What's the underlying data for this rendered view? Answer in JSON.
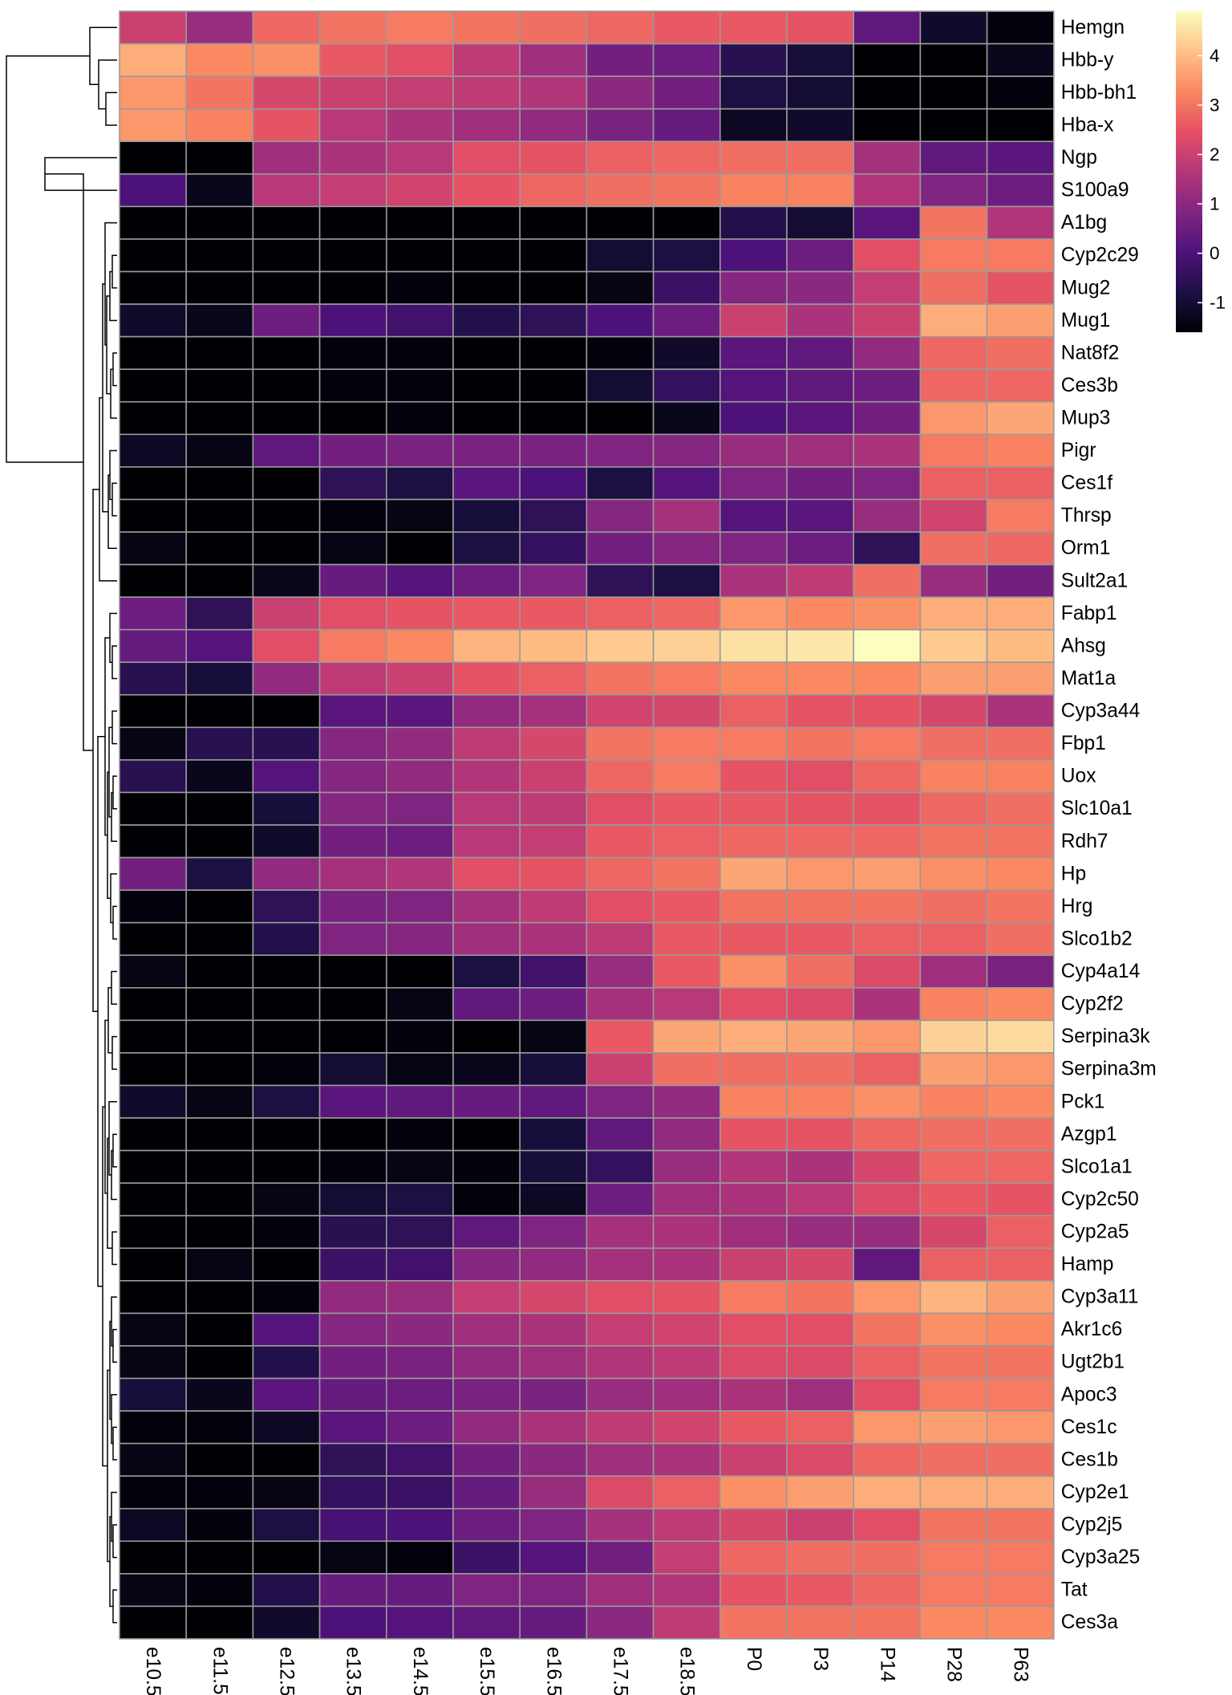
{
  "chart_data": {
    "type": "heatmap",
    "title": "",
    "xlabel": "",
    "ylabel": "",
    "colormap": "magma",
    "color_range": [
      -1.6,
      4.9
    ],
    "colors": {
      "magma_stops": [
        "#000004",
        "#1c1044",
        "#4f127b",
        "#812581",
        "#b5367a",
        "#e55064",
        "#fb8761",
        "#fec287",
        "#fcfdbf"
      ],
      "cell_border": "#9a9a9a",
      "dendrogram": "#000000"
    },
    "columns": [
      "e10.5",
      "e11.5",
      "e12.5",
      "e13.5",
      "e14.5",
      "e15.5",
      "e16.5",
      "e17.5",
      "e18.5",
      "P0",
      "P3",
      "P14",
      "P28",
      "P63"
    ],
    "rows": [
      "Hemgn",
      "Hbb-y",
      "Hbb-bh1",
      "Hba-x",
      "Ngp",
      "S100a9",
      "A1bg",
      "Cyp2c29",
      "Mug2",
      "Mug1",
      "Nat8f2",
      "Ces3b",
      "Mup3",
      "Pigr",
      "Ces1f",
      "Thrsp",
      "Orm1",
      "Sult2a1",
      "Fabp1",
      "Ahsg",
      "Mat1a",
      "Cyp3a44",
      "Fbp1",
      "Uox",
      "Slc10a1",
      "Rdh7",
      "Hp",
      "Hrg",
      "Slco1b2",
      "Cyp4a14",
      "Cyp2f2",
      "Serpina3k",
      "Serpina3m",
      "Pck1",
      "Azgp1",
      "Slco1a1",
      "Cyp2c50",
      "Cyp2a5",
      "Hamp",
      "Cyp3a11",
      "Akr1c6",
      "Ugt2b1",
      "Apoc3",
      "Ces1c",
      "Ces1b",
      "Cyp2e1",
      "Cyp2j5",
      "Cyp3a25",
      "Tat",
      "Ces3a"
    ],
    "values": [
      [
        2.0,
        1.2,
        2.8,
        3.0,
        3.1,
        3.0,
        2.9,
        2.8,
        2.6,
        2.6,
        2.5,
        0.3,
        -1.1,
        -1.5
      ],
      [
        3.8,
        3.3,
        3.4,
        2.6,
        2.4,
        1.8,
        1.3,
        0.6,
        0.5,
        -0.6,
        -0.9,
        -1.6,
        -1.6,
        -1.3
      ],
      [
        3.5,
        3.0,
        2.2,
        2.0,
        1.9,
        1.8,
        1.6,
        1.0,
        0.6,
        -0.8,
        -1.0,
        -1.6,
        -1.6,
        -1.5
      ],
      [
        3.5,
        3.2,
        2.5,
        1.7,
        1.5,
        1.3,
        1.1,
        0.7,
        0.4,
        -1.2,
        -1.1,
        -1.6,
        -1.6,
        -1.6
      ],
      [
        -1.6,
        -1.6,
        1.3,
        1.5,
        1.7,
        2.4,
        2.5,
        2.7,
        2.8,
        2.9,
        2.9,
        1.4,
        0.3,
        0.2
      ],
      [
        0.0,
        -1.3,
        1.7,
        1.9,
        2.1,
        2.5,
        2.8,
        2.9,
        3.0,
        3.2,
        3.2,
        1.6,
        0.8,
        0.5
      ],
      [
        -1.6,
        -1.6,
        -1.6,
        -1.6,
        -1.6,
        -1.6,
        -1.6,
        -1.6,
        -1.6,
        -0.7,
        -1.0,
        0.2,
        3.0,
        1.6
      ],
      [
        -1.6,
        -1.6,
        -1.6,
        -1.6,
        -1.6,
        -1.6,
        -1.6,
        -1.0,
        -0.8,
        0.0,
        0.5,
        2.4,
        3.1,
        3.1
      ],
      [
        -1.6,
        -1.6,
        -1.6,
        -1.6,
        -1.5,
        -1.6,
        -1.6,
        -1.4,
        -0.3,
        0.9,
        1.0,
        1.9,
        2.9,
        2.5
      ],
      [
        -1.1,
        -1.3,
        0.5,
        0.0,
        -0.2,
        -0.7,
        -0.5,
        0.0,
        0.5,
        2.0,
        1.5,
        2.0,
        3.8,
        3.6
      ],
      [
        -1.6,
        -1.6,
        -1.6,
        -1.5,
        -1.5,
        -1.6,
        -1.6,
        -1.5,
        -1.1,
        0.2,
        0.3,
        1.1,
        2.8,
        2.9
      ],
      [
        -1.6,
        -1.6,
        -1.6,
        -1.5,
        -1.5,
        -1.6,
        -1.6,
        -1.0,
        -0.4,
        0.1,
        0.3,
        0.5,
        2.8,
        2.8
      ],
      [
        -1.6,
        -1.6,
        -1.6,
        -1.6,
        -1.5,
        -1.6,
        -1.6,
        -1.6,
        -1.3,
        0.0,
        0.2,
        0.6,
        3.5,
        3.7
      ],
      [
        -1.2,
        -1.4,
        0.3,
        0.6,
        0.7,
        0.7,
        0.7,
        0.8,
        0.9,
        1.2,
        1.3,
        1.5,
        3.1,
        3.2
      ],
      [
        -1.6,
        -1.6,
        -1.6,
        -0.5,
        -0.8,
        0.2,
        0.0,
        -0.8,
        0.1,
        0.8,
        0.6,
        0.8,
        2.7,
        2.7
      ],
      [
        -1.6,
        -1.6,
        -1.6,
        -1.5,
        -1.4,
        -0.9,
        -0.5,
        0.9,
        1.4,
        0.1,
        0.2,
        1.2,
        2.1,
        3.1
      ],
      [
        -1.4,
        -1.6,
        -1.6,
        -1.4,
        -1.6,
        -0.8,
        -0.4,
        0.6,
        0.9,
        0.8,
        0.5,
        -0.5,
        2.9,
        2.8
      ],
      [
        -1.6,
        -1.6,
        -1.3,
        0.4,
        0.1,
        0.5,
        0.8,
        -0.5,
        -0.8,
        1.5,
        1.8,
        2.9,
        1.2,
        0.6
      ],
      [
        0.5,
        -0.5,
        2.0,
        2.4,
        2.5,
        2.6,
        2.6,
        2.7,
        2.8,
        3.5,
        3.3,
        3.4,
        3.8,
        3.8
      ],
      [
        0.4,
        0.1,
        2.4,
        3.1,
        3.3,
        3.9,
        4.0,
        4.2,
        4.3,
        4.5,
        4.6,
        4.9,
        4.2,
        4.0
      ],
      [
        -0.6,
        -0.9,
        1.1,
        1.8,
        2.0,
        2.5,
        2.7,
        3.0,
        3.1,
        3.3,
        3.3,
        3.3,
        3.6,
        3.6
      ],
      [
        -1.6,
        -1.6,
        -1.6,
        0.2,
        0.2,
        1.1,
        1.4,
        2.1,
        2.2,
        2.7,
        2.5,
        2.5,
        2.2,
        1.5
      ],
      [
        -1.4,
        -0.6,
        -0.6,
        0.9,
        1.1,
        1.8,
        2.2,
        3.0,
        3.1,
        3.1,
        3.0,
        3.1,
        2.9,
        2.9
      ],
      [
        -0.6,
        -1.3,
        0.1,
        0.9,
        1.1,
        1.6,
        2.0,
        2.8,
        3.1,
        2.5,
        2.4,
        2.8,
        3.2,
        3.2
      ],
      [
        -1.6,
        -1.6,
        -0.9,
        0.9,
        0.8,
        1.7,
        1.8,
        2.4,
        2.6,
        2.6,
        2.5,
        2.5,
        2.8,
        2.9
      ],
      [
        -1.6,
        -1.6,
        -1.1,
        0.6,
        0.5,
        1.7,
        1.9,
        2.6,
        2.7,
        2.8,
        2.8,
        2.8,
        3.0,
        3.0
      ],
      [
        0.6,
        -0.8,
        1.1,
        1.4,
        1.6,
        2.4,
        2.5,
        2.8,
        3.0,
        3.7,
        3.5,
        3.6,
        3.4,
        3.3
      ],
      [
        -1.5,
        -1.6,
        -0.5,
        0.7,
        0.8,
        1.4,
        1.8,
        2.4,
        2.6,
        3.0,
        3.0,
        3.0,
        2.9,
        3.0
      ],
      [
        -1.6,
        -1.6,
        -0.7,
        0.8,
        0.9,
        1.3,
        1.5,
        1.8,
        2.6,
        2.6,
        2.6,
        2.7,
        2.7,
        2.9
      ],
      [
        -1.4,
        -1.6,
        -1.6,
        -1.6,
        -1.6,
        -0.8,
        -0.2,
        1.2,
        2.6,
        3.4,
        2.9,
        2.3,
        1.3,
        0.7
      ],
      [
        -1.6,
        -1.6,
        -1.6,
        -1.6,
        -1.4,
        0.3,
        0.5,
        1.4,
        1.7,
        2.4,
        2.3,
        1.5,
        3.2,
        3.3
      ],
      [
        -1.6,
        -1.6,
        -1.6,
        -1.6,
        -1.5,
        -1.6,
        -1.4,
        2.6,
        3.7,
        3.8,
        3.7,
        3.5,
        4.3,
        4.4
      ],
      [
        -1.6,
        -1.6,
        -1.5,
        -1.0,
        -1.4,
        -1.3,
        -0.9,
        2.0,
        2.9,
        2.9,
        2.9,
        2.7,
        3.6,
        3.5
      ],
      [
        -1.1,
        -1.4,
        -0.8,
        0.2,
        0.3,
        0.4,
        0.3,
        0.8,
        1.1,
        3.2,
        3.2,
        3.4,
        3.2,
        3.3
      ],
      [
        -1.6,
        -1.6,
        -1.6,
        -1.6,
        -1.5,
        -1.6,
        -0.9,
        0.3,
        1.1,
        2.5,
        2.5,
        2.8,
        2.9,
        2.9
      ],
      [
        -1.6,
        -1.6,
        -1.6,
        -1.5,
        -1.4,
        -1.5,
        -0.9,
        -0.4,
        1.2,
        1.6,
        1.5,
        2.2,
        2.8,
        2.8
      ],
      [
        -1.6,
        -1.6,
        -1.4,
        -1.0,
        -0.8,
        -1.5,
        -1.2,
        0.5,
        1.3,
        1.5,
        1.7,
        2.3,
        2.6,
        2.5
      ],
      [
        -1.6,
        -1.6,
        -1.5,
        -0.6,
        -0.5,
        0.3,
        0.8,
        1.4,
        1.5,
        1.3,
        1.2,
        1.2,
        2.2,
        2.7
      ],
      [
        -1.6,
        -1.4,
        -1.6,
        -0.3,
        -0.2,
        0.9,
        1.1,
        1.4,
        1.5,
        2.0,
        2.2,
        0.3,
        2.7,
        2.7
      ],
      [
        -1.6,
        -1.6,
        -1.5,
        1.1,
        1.2,
        1.9,
        2.2,
        2.4,
        2.5,
        3.1,
        3.0,
        3.5,
        3.9,
        3.6
      ],
      [
        -1.4,
        -1.6,
        0.1,
        0.9,
        1.0,
        1.3,
        1.5,
        1.9,
        2.1,
        2.4,
        2.4,
        3.0,
        3.4,
        3.3
      ],
      [
        -1.4,
        -1.6,
        -0.7,
        0.6,
        0.7,
        1.1,
        1.3,
        1.6,
        1.8,
        2.3,
        2.3,
        2.7,
        3.0,
        3.0
      ],
      [
        -0.9,
        -1.3,
        0.2,
        0.4,
        0.5,
        0.7,
        0.7,
        1.2,
        1.3,
        1.5,
        1.3,
        2.4,
        3.1,
        3.1
      ],
      [
        -1.5,
        -1.5,
        -1.2,
        0.2,
        0.5,
        1.1,
        1.5,
        1.8,
        2.1,
        2.6,
        2.7,
        3.5,
        3.6,
        3.5
      ],
      [
        -1.4,
        -1.6,
        -1.6,
        -0.5,
        -0.2,
        0.6,
        1.0,
        1.3,
        1.5,
        2.0,
        2.3,
        2.8,
        2.9,
        2.9
      ],
      [
        -1.5,
        -1.5,
        -1.4,
        -0.4,
        -0.3,
        0.4,
        1.2,
        2.3,
        2.7,
        3.4,
        3.6,
        3.8,
        3.8,
        3.8
      ],
      [
        -1.2,
        -1.5,
        -0.8,
        -0.1,
        0.0,
        0.5,
        0.8,
        1.4,
        1.8,
        2.2,
        2.0,
        2.4,
        3.0,
        3.0
      ],
      [
        -1.6,
        -1.6,
        -1.6,
        -1.4,
        -1.5,
        -0.3,
        0.1,
        0.6,
        1.9,
        2.8,
        2.9,
        2.9,
        3.1,
        3.1
      ],
      [
        -1.4,
        -1.5,
        -0.7,
        0.4,
        0.4,
        0.8,
        0.8,
        1.3,
        1.6,
        2.5,
        2.6,
        2.8,
        3.1,
        3.1
      ],
      [
        -1.6,
        -1.6,
        -1.1,
        0.0,
        0.1,
        0.3,
        0.4,
        1.0,
        1.8,
        3.0,
        3.0,
        3.0,
        3.3,
        3.3
      ]
    ],
    "legend": {
      "ticks": [
        -1,
        0,
        1,
        2,
        3,
        4
      ],
      "tick_labels": [
        "-1",
        "0",
        "1",
        "2",
        "3",
        "4"
      ],
      "placement": "top-right"
    },
    "row_dendrogram": true,
    "grid": true
  }
}
